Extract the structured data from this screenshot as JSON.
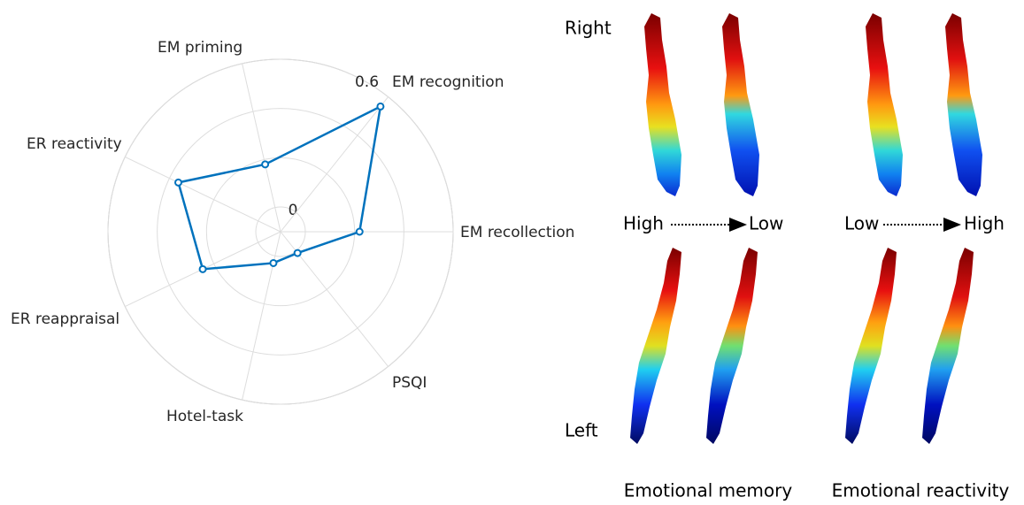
{
  "chart_data": {
    "type": "radar",
    "categories": [
      "EM recollection",
      "EM recognition",
      "EM priming",
      "ER reactivity",
      "ER reappraisal",
      "Hotel-task",
      "PSQI"
    ],
    "values": [
      0.22,
      0.55,
      0.18,
      0.36,
      0.25,
      0.03,
      0.01
    ],
    "color": "#0072bd",
    "rlim": [
      0,
      0.6
    ],
    "rticks": [
      0,
      {
        "value": 0.2,
        "label": null
      },
      {
        "value": 0.4,
        "label": null
      },
      0.6
    ],
    "grid": true
  },
  "figure": {
    "rows": [
      "Right",
      "Left"
    ],
    "scales": [
      {
        "from": "High",
        "to": "Low"
      },
      {
        "from": "Low",
        "to": "High"
      }
    ],
    "columns": [
      "Emotional memory",
      "Emotional reactivity"
    ]
  }
}
